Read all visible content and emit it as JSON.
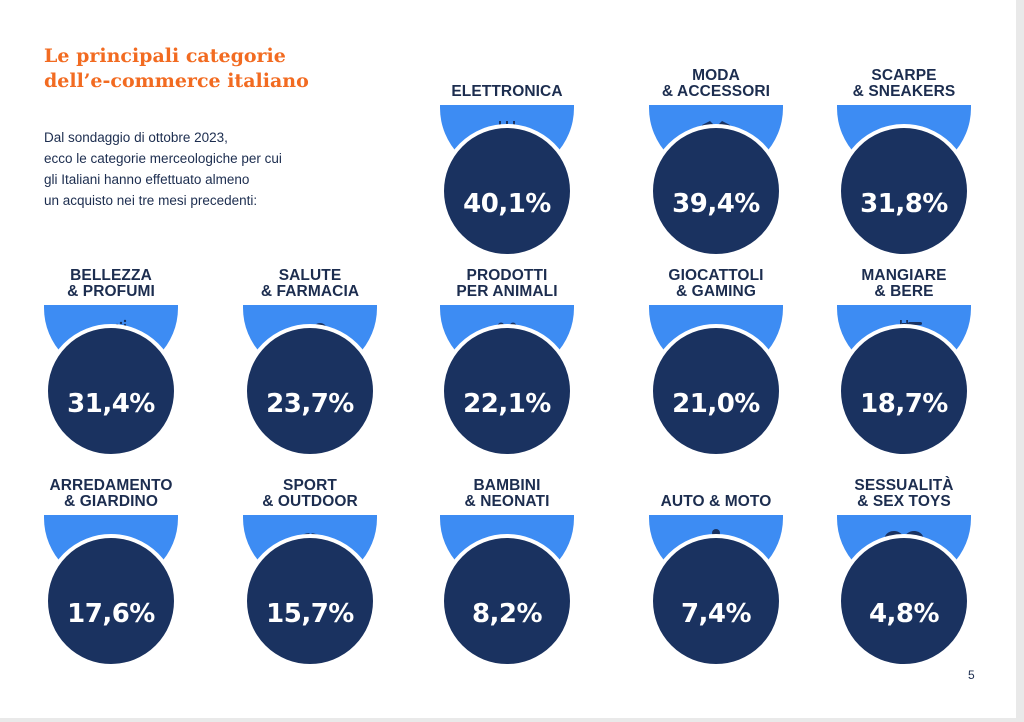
{
  "title": [
    "Le principali categorie",
    "dell’e-commerce italiano"
  ],
  "intro": [
    "Dal sondaggio di ottobre 2023,",
    "ecco le categorie merceologiche per cui",
    "gli Italiani hanno effettuato almeno",
    "un acquisto nei tre mesi precedenti:"
  ],
  "page_number": "5",
  "colors": {
    "title": "#f26b21",
    "text": "#1c2d4f",
    "bowl": "#3d8cf3",
    "circle": "#1a3260"
  },
  "categories": [
    {
      "label": [
        "ELETTRONICA",
        ""
      ],
      "value": "40,1%",
      "percent": 40.1,
      "icon": "chip-icon"
    },
    {
      "label": [
        "MODA",
        "& ACCESSORI"
      ],
      "value": "39,4%",
      "percent": 39.4,
      "icon": "coat-icon"
    },
    {
      "label": [
        "SCARPE",
        "& SNEAKERS"
      ],
      "value": "31,8%",
      "percent": 31.8,
      "icon": "sneaker-icon"
    },
    {
      "label": [
        "BELLEZZA",
        "& PROFUMI"
      ],
      "value": "31,4%",
      "percent": 31.4,
      "icon": "perfume-icon"
    },
    {
      "label": [
        "SALUTE",
        "& FARMACIA"
      ],
      "value": "23,7%",
      "percent": 23.7,
      "icon": "pills-icon"
    },
    {
      "label": [
        "PRODOTTI",
        "PER ANIMALI"
      ],
      "value": "22,1%",
      "percent": 22.1,
      "icon": "paw-icon"
    },
    {
      "label": [
        "GIOCATTOLI",
        "& GAMING"
      ],
      "value": "21,0%",
      "percent": 21.0,
      "icon": "gamepad-icon"
    },
    {
      "label": [
        "MANGIARE",
        "& BERE"
      ],
      "value": "18,7%",
      "percent": 18.7,
      "icon": "pasta-fork-icon"
    },
    {
      "label": [
        "ARREDAMENTO",
        "& GIARDINO"
      ],
      "value": "17,6%",
      "percent": 17.6,
      "icon": "armchair-icon"
    },
    {
      "label": [
        "SPORT",
        "& OUTDOOR"
      ],
      "value": "15,7%",
      "percent": 15.7,
      "icon": "volleyball-icon"
    },
    {
      "label": [
        "BAMBINI",
        "& NEONATI"
      ],
      "value": "8,2%",
      "percent": 8.2,
      "icon": "pacifier-icon"
    },
    {
      "label": [
        "AUTO & MOTO",
        ""
      ],
      "value": "7,4%",
      "percent": 7.4,
      "icon": "motorcycle-icon"
    },
    {
      "label": [
        "SESSUALITÀ",
        "& SEX TOYS"
      ],
      "value": "4,8%",
      "percent": 4.8,
      "icon": "heart-icon"
    }
  ]
}
